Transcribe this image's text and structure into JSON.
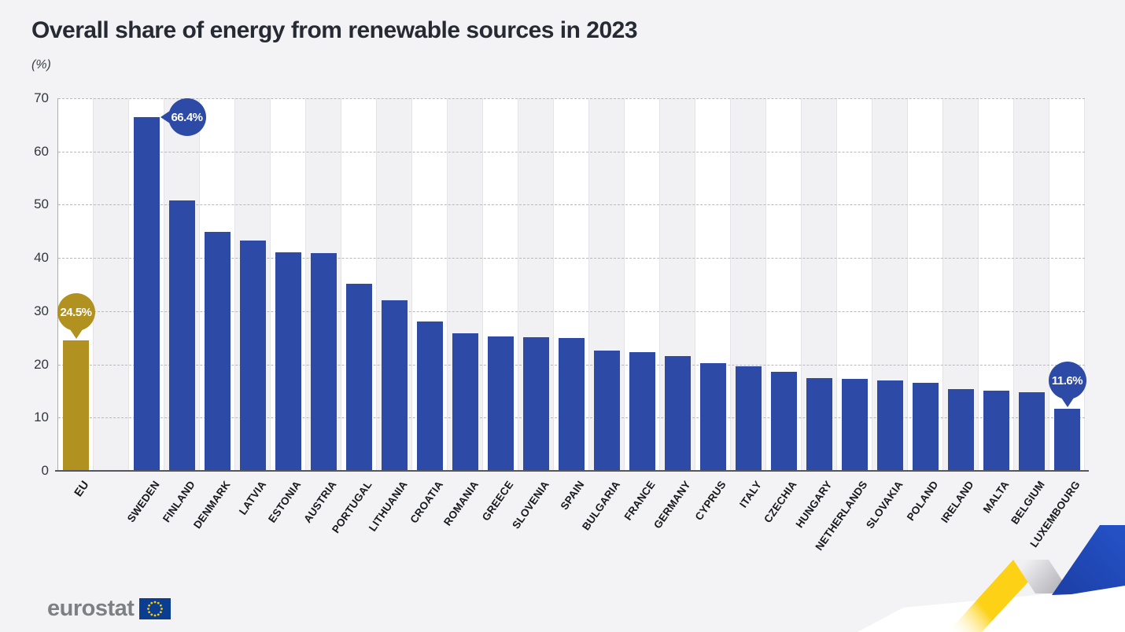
{
  "title": "Overall share of energy from renewable sources in 2023",
  "subtitle": "(%)",
  "footer": {
    "logo_text": "eurostat"
  },
  "colors": {
    "bar_blue": "#2c4aa6",
    "bar_gold": "#b19120",
    "page_background": "#f3f3f5",
    "stripe_white": "#ffffff",
    "stripe_gray": "#f1f1f4"
  },
  "chart_data": {
    "type": "bar",
    "title": "Overall share of energy from renewable sources in 2023",
    "xlabel": "",
    "ylabel": "(%)",
    "ylim": [
      0,
      70
    ],
    "yticks": [
      0,
      10,
      20,
      30,
      40,
      50,
      60,
      70
    ],
    "grid": "horizontal-dashed",
    "legend_position": "none",
    "gap_after_first_category": true,
    "categories": [
      "EU",
      "SWEDEN",
      "FINLAND",
      "DENMARK",
      "LATVIA",
      "ESTONIA",
      "AUSTRIA",
      "PORTUGAL",
      "LITHUANIA",
      "CROATIA",
      "ROMANIA",
      "GREECE",
      "SLOVENIA",
      "SPAIN",
      "BULGARIA",
      "FRANCE",
      "GERMANY",
      "CYPRUS",
      "ITALY",
      "CZECHIA",
      "HUNGARY",
      "NETHERLANDS",
      "SLOVAKIA",
      "POLAND",
      "IRELAND",
      "MALTA",
      "BELGIUM",
      "LUXEMBOURG"
    ],
    "values": [
      24.5,
      66.4,
      50.8,
      44.9,
      43.2,
      41.1,
      40.9,
      35.2,
      32.0,
      28.1,
      25.8,
      25.3,
      25.1,
      24.9,
      22.6,
      22.3,
      21.6,
      20.2,
      19.6,
      18.6,
      17.4,
      17.3,
      17.0,
      16.6,
      15.3,
      15.1,
      14.7,
      11.6
    ],
    "bar_colors": {
      "default": "#2c4aa6",
      "EU": "#b19120"
    },
    "annotations": [
      {
        "category": "EU",
        "text": "24.5%",
        "color": "#b19120",
        "pointer": "down"
      },
      {
        "category": "SWEDEN",
        "text": "66.4%",
        "color": "#2c4aa6",
        "pointer": "left"
      },
      {
        "category": "LUXEMBOURG",
        "text": "11.6%",
        "color": "#2c4aa6",
        "pointer": "down"
      }
    ]
  }
}
